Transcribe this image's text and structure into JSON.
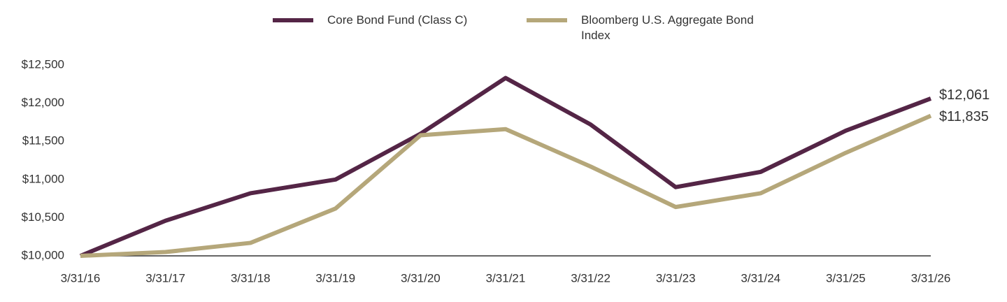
{
  "chart_data": {
    "type": "line",
    "x": [
      "3/31/16",
      "3/31/17",
      "3/31/18",
      "3/31/19",
      "3/31/20",
      "3/31/21",
      "3/31/22",
      "3/31/23",
      "3/31/24",
      "3/31/25",
      "3/31/26"
    ],
    "series": [
      {
        "name": "Core Bond Fund (Class C)",
        "color": "#542546",
        "values": [
          10000,
          10460,
          10820,
          11000,
          11600,
          12330,
          11720,
          10900,
          11100,
          11640,
          12061
        ],
        "value_labels": [
          null,
          null,
          null,
          null,
          null,
          null,
          null,
          null,
          null,
          null,
          "$12,061"
        ]
      },
      {
        "name": "Bloomberg U.S. Aggregate Bond Index",
        "color": "#b5a77a",
        "values": [
          10000,
          10050,
          10170,
          10620,
          11580,
          11660,
          11170,
          10640,
          10820,
          11350,
          11835
        ],
        "value_labels": [
          null,
          null,
          null,
          null,
          null,
          null,
          null,
          null,
          null,
          null,
          "$11,835"
        ]
      }
    ],
    "ylim": [
      10000,
      12500
    ],
    "yticks": [
      {
        "value": 10000,
        "label": "$10,000"
      },
      {
        "value": 10500,
        "label": "$10,500"
      },
      {
        "value": 11000,
        "label": "$11,000"
      },
      {
        "value": 11500,
        "label": "$11,500"
      },
      {
        "value": 12000,
        "label": "$12,000"
      },
      {
        "value": 12500,
        "label": "$12,500"
      }
    ],
    "grid": false,
    "legend": "top"
  }
}
